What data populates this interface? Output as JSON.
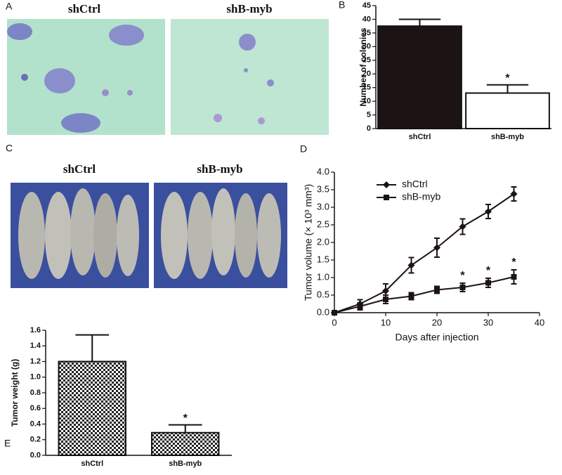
{
  "panels": {
    "a": {
      "label": "A",
      "captions": [
        "shCtrl",
        "shB-myb"
      ]
    },
    "c": {
      "label": "C",
      "captions": [
        "shCtrl",
        "shB-myb"
      ]
    }
  },
  "chart_data": [
    {
      "type": "bar",
      "panel": "B",
      "ylabel": "Number of colonies",
      "categories": [
        "shCtrl",
        "shB-myb"
      ],
      "values": [
        37.5,
        13
      ],
      "errors": [
        2.5,
        3
      ],
      "markers": [
        null,
        "*"
      ],
      "colors": [
        "#1c1414",
        "#ffffff"
      ],
      "ylim": [
        0,
        45
      ],
      "yticks": [
        0,
        5,
        10,
        15,
        20,
        25,
        30,
        35,
        40,
        45
      ]
    },
    {
      "type": "line",
      "panel": "D",
      "ylabel": "Tumor volume (× 10³ mm³)",
      "xlabel": "Days after injection",
      "x": [
        0,
        5,
        10,
        15,
        20,
        25,
        30,
        35
      ],
      "series": [
        {
          "name": "shCtrl",
          "color": "#1c1414",
          "marker": "diamond",
          "values": [
            0,
            0.25,
            0.62,
            1.35,
            1.85,
            2.45,
            2.88,
            3.38
          ],
          "errors": [
            0,
            0.12,
            0.2,
            0.22,
            0.27,
            0.22,
            0.2,
            0.2
          ]
        },
        {
          "name": "shB-myb",
          "color": "#1c1414",
          "marker": "square",
          "values": [
            0,
            0.18,
            0.38,
            0.47,
            0.65,
            0.72,
            0.85,
            1.02
          ],
          "errors": [
            0,
            0.1,
            0.12,
            0.1,
            0.1,
            0.12,
            0.13,
            0.2
          ],
          "markers": [
            null,
            null,
            null,
            null,
            null,
            "*",
            "*",
            "*"
          ]
        }
      ],
      "legend": "upper left",
      "xlim": [
        0,
        40
      ],
      "xticks": [
        0,
        10,
        20,
        30,
        40
      ],
      "ylim": [
        0,
        4
      ],
      "yticks": [
        {
          "value": 0,
          "label": "0.0"
        },
        0.5,
        {
          "value": 1,
          "label": "1.0"
        },
        1.5,
        {
          "value": 2,
          "label": "2.0"
        },
        2.5,
        {
          "value": 3,
          "label": "3.0"
        },
        3.5,
        {
          "value": 4,
          "label": "4.0"
        }
      ]
    },
    {
      "type": "bar",
      "panel": "E",
      "ylabel": "Tumor weight (g)",
      "categories": [
        "shCtrl",
        "shB-myb"
      ],
      "values": [
        1.2,
        0.29
      ],
      "errors": [
        0.34,
        0.1
      ],
      "markers": [
        null,
        "*"
      ],
      "pattern": "checkerboard",
      "ylim": [
        0,
        1.6
      ],
      "yticks": [
        {
          "value": 0,
          "label": "0.0"
        },
        0.2,
        0.4,
        0.6,
        0.8,
        {
          "value": 1,
          "label": "1.0"
        },
        1.2,
        1.4,
        1.6
      ]
    }
  ]
}
